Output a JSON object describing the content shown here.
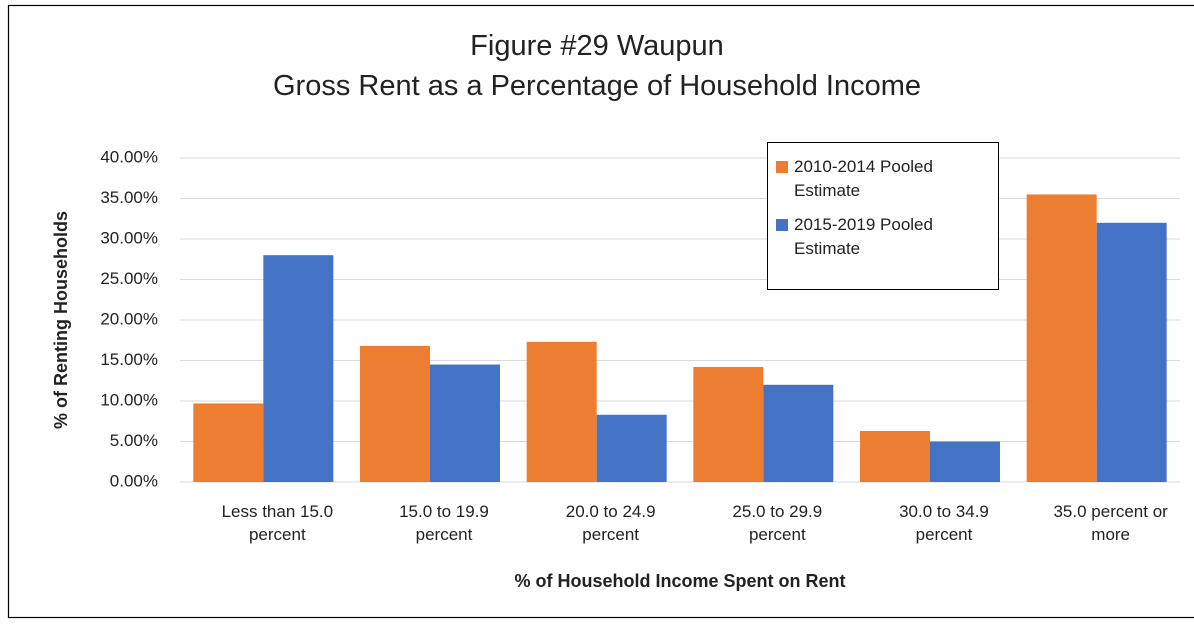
{
  "chart_data": {
    "type": "bar",
    "title": "Figure #29  Waupun",
    "subtitle": "Gross Rent as a Percentage of Household Income",
    "x_label": "% of Household Income Spent on Rent",
    "y_label": "% of Renting Households",
    "categories": [
      "Less than 15.0 percent",
      "15.0 to 19.9 percent",
      "20.0 to 24.9 percent",
      "25.0 to 29.9 percent",
      "30.0 to 34.9 percent",
      "35.0 percent or more"
    ],
    "series": [
      {
        "name": "2010-2014 Pooled Estimate",
        "color": "#ed7d31",
        "values": [
          9.7,
          16.8,
          17.3,
          14.2,
          6.3,
          35.5
        ]
      },
      {
        "name": "2015-2019 Pooled Estimate",
        "color": "#4472c4",
        "values": [
          28.0,
          14.5,
          8.3,
          12.0,
          5.0,
          32.0
        ]
      }
    ],
    "ylim": [
      0,
      40
    ],
    "yticks": [
      {
        "value": 0,
        "label": "0.00%"
      },
      {
        "value": 5,
        "label": "5.00%"
      },
      {
        "value": 10,
        "label": "10.00%"
      },
      {
        "value": 15,
        "label": "15.00%"
      },
      {
        "value": 20,
        "label": "20.00%"
      },
      {
        "value": 25,
        "label": "25.00%"
      },
      {
        "value": 30,
        "label": "30.00%"
      },
      {
        "value": 35,
        "label": "35.00%"
      },
      {
        "value": 40,
        "label": "40.00%"
      }
    ],
    "grid": true,
    "legend": "upper right"
  }
}
